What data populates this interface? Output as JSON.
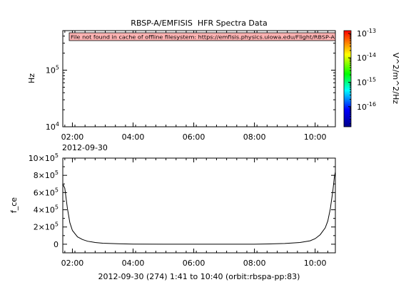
{
  "title": "RBSP-A/EMFISIS  HFR Spectra Data",
  "footer": "2012-09-30 (274) 1:41 to 10:40 (orbit:rbspa-pp:83)",
  "chart_data": [
    {
      "type": "heatmap",
      "title": "RBSP-A/EMFISIS  HFR Spectra Data",
      "ylabel": "Hz",
      "yscale": "log",
      "ylim": [
        10000,
        500000
      ],
      "yticks": [
        {
          "value": 10000,
          "base": "10",
          "exp": "4"
        },
        {
          "value": 100000,
          "base": "10",
          "exp": "5"
        }
      ],
      "xlim": [
        "01:41",
        "10:40"
      ],
      "xticks": [
        "02:00",
        "04:00",
        "06:00",
        "08:00",
        "10:00"
      ],
      "date_label": "2012-09-30",
      "message": "File not found in cache of offline filesystem: https://emfisis.physics.uiowa.edu/Flight/RBSP-A",
      "colorbar": {
        "label": "V^2/m^2/Hz",
        "scale": "log",
        "range": [
          1.5e-17,
          1.3e-13
        ],
        "ticks": [
          {
            "value": 1e-13,
            "base": "10",
            "exp": "-13"
          },
          {
            "value": 1e-14,
            "base": "10",
            "exp": "-14"
          },
          {
            "value": 1e-15,
            "base": "10",
            "exp": "-15"
          },
          {
            "value": 1e-16,
            "base": "10",
            "exp": "-16"
          }
        ],
        "colors": [
          "#00008b",
          "#0000ff",
          "#00ffff",
          "#00ff00",
          "#ffff00",
          "#ff0000"
        ]
      }
    },
    {
      "type": "line",
      "ylabel": "f_ce",
      "xlim": [
        "01:41",
        "10:40"
      ],
      "ylim": [
        -100000,
        1000000
      ],
      "xticks": [
        "02:00",
        "04:00",
        "06:00",
        "08:00",
        "10:00"
      ],
      "yticks": [
        {
          "value": 0,
          "text": "0",
          "exp": ""
        },
        {
          "value": 200000,
          "text": "2×10",
          "exp": "5"
        },
        {
          "value": 400000,
          "text": "4×10",
          "exp": "5"
        },
        {
          "value": 600000,
          "text": "6×10",
          "exp": "5"
        },
        {
          "value": 800000,
          "text": "8×10",
          "exp": "5"
        },
        {
          "value": 1000000,
          "text": "10×10",
          "exp": "5"
        }
      ],
      "x": [
        "01:41",
        "01:45",
        "01:50",
        "01:55",
        "02:00",
        "02:10",
        "02:20",
        "02:30",
        "02:45",
        "03:00",
        "03:30",
        "04:00",
        "05:00",
        "06:00",
        "07:00",
        "08:00",
        "08:30",
        "09:00",
        "09:30",
        "09:50",
        "10:00",
        "10:10",
        "10:20",
        "10:25",
        "10:30",
        "10:35",
        "10:38",
        "10:40"
      ],
      "values": [
        700000,
        650000,
        420000,
        250000,
        160000,
        85000,
        55000,
        35000,
        20000,
        12000,
        6000,
        2000,
        0,
        0,
        0,
        0,
        3000,
        8000,
        20000,
        40000,
        65000,
        110000,
        190000,
        270000,
        410000,
        620000,
        780000,
        840000
      ]
    }
  ]
}
